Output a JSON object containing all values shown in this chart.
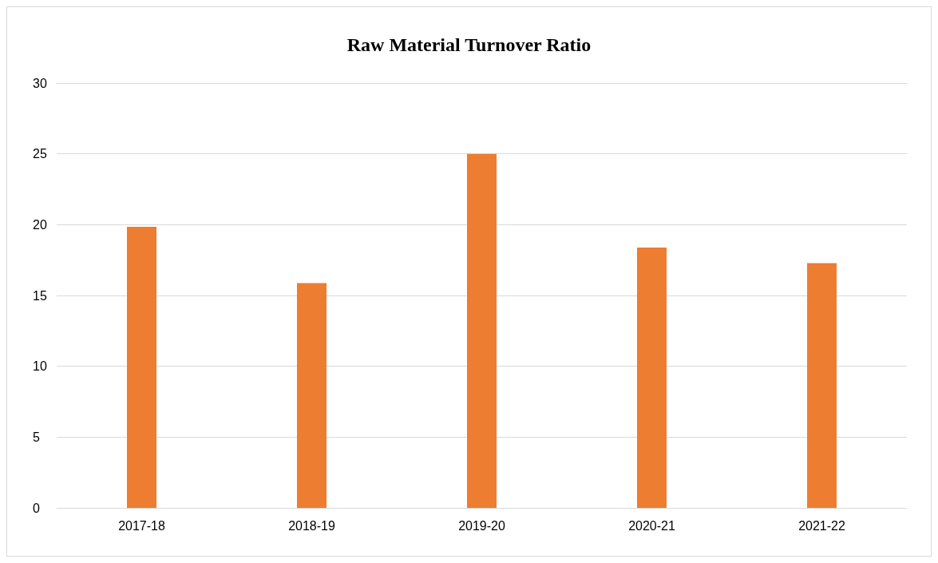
{
  "chart_data": {
    "type": "bar",
    "title": "Raw Material Turnover Ratio",
    "categories": [
      "2017-18",
      "2018-19",
      "2019-20",
      "2020-21",
      "2021-22"
    ],
    "values": [
      19.85,
      15.87,
      25,
      18.38,
      17.29
    ],
    "color": "#ed7d31",
    "ylim": [
      0,
      30
    ],
    "yticks": [
      0,
      5,
      10,
      15,
      20,
      25,
      30
    ],
    "grid": "y"
  }
}
